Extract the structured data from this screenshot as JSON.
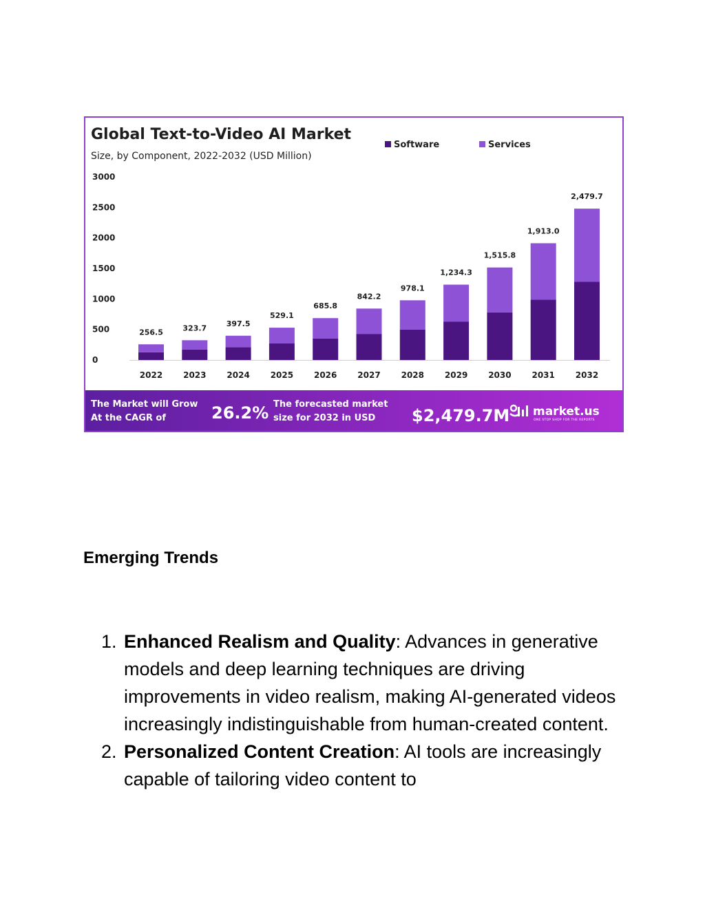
{
  "chart_data": {
    "type": "bar",
    "stacked": true,
    "title": "Global Text-to-Video AI Market",
    "subtitle": "Size, by Component, 2022-2032 (USD Million)",
    "categories": [
      "2022",
      "2023",
      "2024",
      "2025",
      "2026",
      "2027",
      "2028",
      "2029",
      "2030",
      "2031",
      "2032"
    ],
    "series": [
      {
        "name": "Software",
        "color": "#4a1580",
        "values": [
          126,
          170,
          208,
          271,
          350,
          427,
          497,
          630,
          780,
          990,
          1280
        ]
      },
      {
        "name": "Services",
        "color": "#8e52d6",
        "values": [
          130.5,
          153.7,
          189.5,
          258.1,
          335.8,
          415.2,
          481.1,
          604.3,
          735.8,
          923.0,
          1199.7
        ]
      }
    ],
    "totals": [
      256.5,
      323.7,
      397.5,
      529.1,
      685.8,
      842.2,
      978.1,
      1234.3,
      1515.8,
      1913.0,
      2479.7
    ],
    "total_labels": [
      "256.5",
      "323.7",
      "397.5",
      "529.1",
      "685.8",
      "842.2",
      "978.1",
      "1,234.3",
      "1,515.8",
      "1,913.0",
      "2,479.7"
    ],
    "yticks": [
      0,
      500,
      1000,
      1500,
      2000,
      2500,
      3000
    ],
    "ylim": [
      0,
      3000
    ],
    "legend_position": "top-right",
    "grid": false
  },
  "banner": {
    "cagr_text_line1": "The Market will Grow",
    "cagr_text_line2": "At the CAGR of",
    "cagr_value": "26.2%",
    "forecast_text_line1": "The forecasted market",
    "forecast_text_line2": "size for 2032 in USD",
    "forecast_value": "$2,479.7M",
    "brand_name": "market.us",
    "brand_tagline": "ONE STOP SHOP FOR THE REPORTS",
    "brand_icon": "market-us-logo-icon",
    "gradient_colors": [
      "#5c1fa0",
      "#b12ed6"
    ]
  },
  "document": {
    "heading": "Emerging Trends",
    "trends": [
      {
        "number": "1.",
        "title": "Enhanced Realism and Quality",
        "text": ": Advances in generative models and deep learning techniques are driving improvements in video realism, making AI-generated videos increasingly indistinguishable from human-created content."
      },
      {
        "number": "2.",
        "title": "Personalized Content Creation",
        "text": ": AI tools are increasingly capable of tailoring video content to"
      }
    ]
  }
}
